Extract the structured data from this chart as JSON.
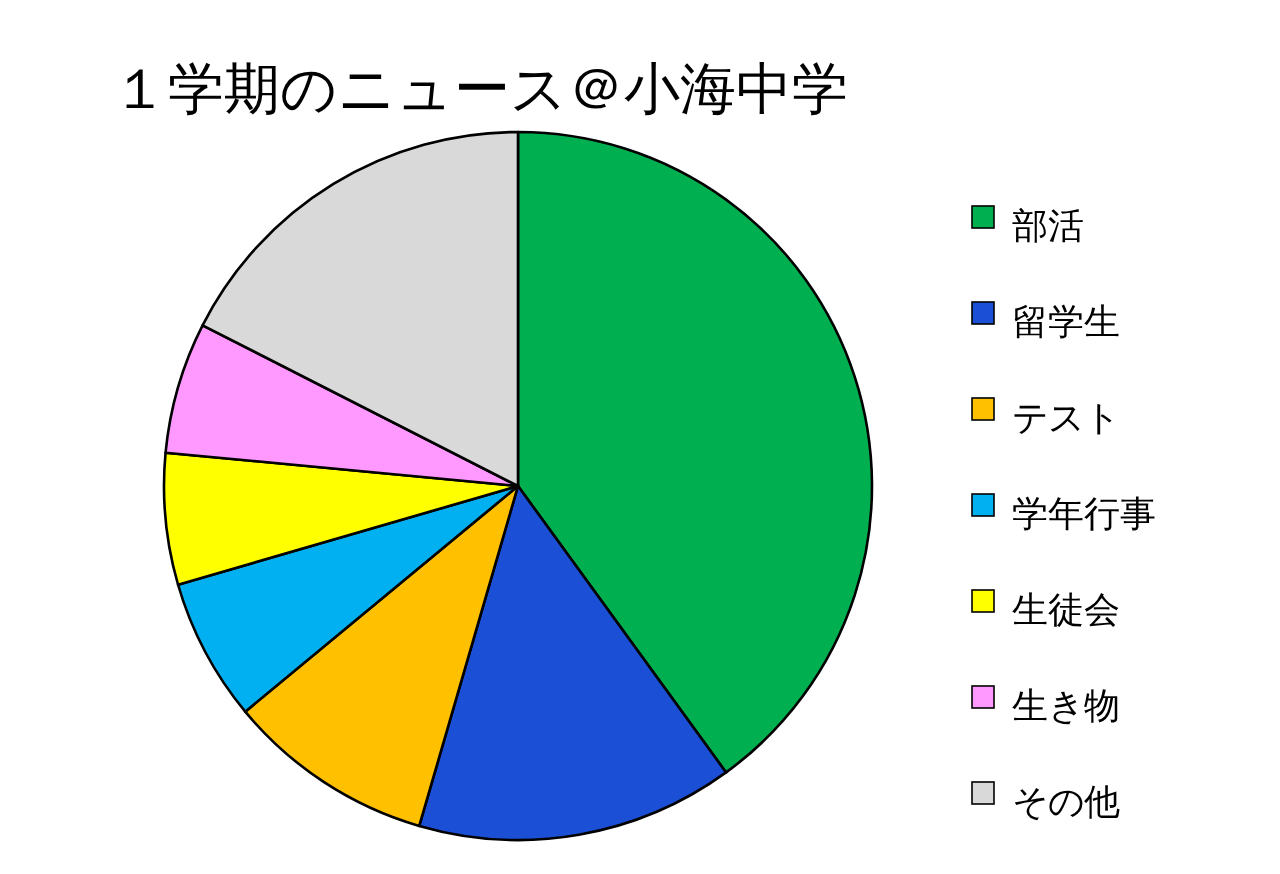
{
  "chart_data": {
    "type": "pie",
    "title": "１学期のニュース＠小海中学",
    "categories": [
      "部活",
      "留学生",
      "テスト",
      "学年行事",
      "生徒会",
      "生き物",
      "その他"
    ],
    "values": [
      40,
      14.5,
      9.5,
      6.5,
      6,
      6,
      17.5
    ],
    "colors": [
      "#00b050",
      "#1a4fd6",
      "#ffc000",
      "#00b0f0",
      "#ffff00",
      "#ff99ff",
      "#d9d9d9"
    ],
    "legend": "right"
  }
}
